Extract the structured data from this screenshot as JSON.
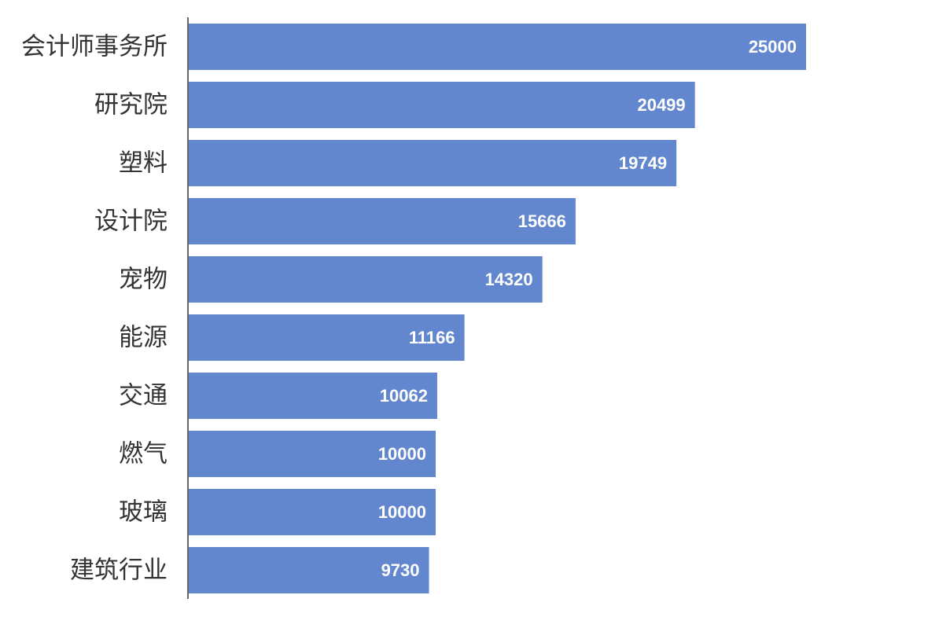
{
  "chart_data": {
    "type": "bar",
    "orientation": "horizontal",
    "categories": [
      "会计师事务所",
      "研究院",
      "塑料",
      "设计院",
      "宠物",
      "能源",
      "交通",
      "燃气",
      "玻璃",
      "建筑行业"
    ],
    "values": [
      25000,
      20499,
      19749,
      15666,
      14320,
      11166,
      10062,
      10000,
      10000,
      9730
    ],
    "title": "",
    "xlabel": "",
    "ylabel": "",
    "xlim": [
      0,
      30000
    ],
    "grid": false,
    "legend": "none",
    "data_labels": true,
    "colors": {
      "bar": "#6287ce",
      "label_text": "#ffffff",
      "axis": "#666666",
      "category_text": "#333333"
    }
  }
}
